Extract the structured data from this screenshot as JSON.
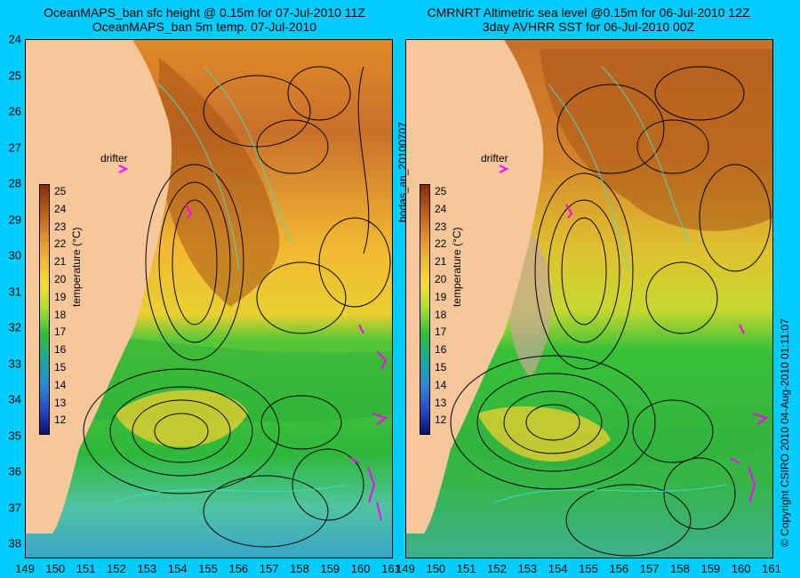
{
  "left_panel": {
    "title_line1": "OceanMAPS_ban sfc height @ 0.15m for 07-Jul-2010 11Z",
    "title_line2": "OceanMAPS_ban 5m temp. 07-Jul-2010",
    "drifter_label": "drifter"
  },
  "right_panel": {
    "title_line1": "CMRNRT Altimetric sea level  @0.15m  for 06-Jul-2010 12Z",
    "title_line2": "3day AVHRR SST for 06-Jul-2010 00Z",
    "drifter_label": "drifter"
  },
  "colorbar": {
    "title": "temperature (°C)",
    "values": [
      "25",
      "24",
      "23",
      "22",
      "21",
      "20",
      "19",
      "18",
      "17",
      "16",
      "15",
      "14",
      "13",
      "12"
    ]
  },
  "latitude_ticks": [
    "24",
    "25",
    "26",
    "27",
    "28",
    "29",
    "30",
    "31",
    "32",
    "33",
    "34",
    "35",
    "36",
    "37",
    "38"
  ],
  "longitude_ticks": [
    "149",
    "150",
    "151",
    "152",
    "153",
    "154",
    "155",
    "156",
    "157",
    "158",
    "159",
    "160",
    "161"
  ],
  "side_label_left": "bodas_an_20100707",
  "side_label_right": "© Copyright CSIRO 2010   04-Aug-2010 01:11:07",
  "colors": {
    "background": "#00ccff",
    "land": "#f7c79c",
    "drifter": "#ff00ff",
    "contour": "#000000",
    "cyan_contour": "#40e0d0"
  }
}
